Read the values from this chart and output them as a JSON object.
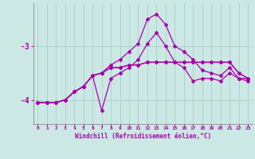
{
  "xlabel": "Windchill (Refroidissement éolien,°C)",
  "background_color": "#cce8e4",
  "grid_color": "#aacfcb",
  "line_color": "#aa00aa",
  "x_ticks": [
    0,
    1,
    2,
    3,
    4,
    5,
    6,
    7,
    8,
    9,
    10,
    11,
    12,
    13,
    14,
    15,
    16,
    17,
    18,
    19,
    20,
    21,
    22,
    23
  ],
  "y_ticks": [
    -4,
    -3
  ],
  "xlim": [
    -0.5,
    23.5
  ],
  "ylim": [
    -4.45,
    -2.2
  ],
  "series": {
    "line1_y": [
      -4.05,
      -4.05,
      -4.05,
      -4.0,
      -3.85,
      -3.75,
      -3.55,
      -3.5,
      -3.35,
      -3.25,
      -3.1,
      -2.95,
      -2.5,
      -2.4,
      -2.6,
      -3.0,
      -3.1,
      -3.25,
      -3.45,
      -3.5,
      -3.55,
      -3.4,
      -3.6,
      -3.6
    ],
    "line2_y": [
      -4.05,
      -4.05,
      -4.05,
      -4.0,
      -3.85,
      -3.75,
      -3.55,
      -4.2,
      -3.6,
      -3.5,
      -3.4,
      -3.25,
      -2.95,
      -2.75,
      -3.0,
      -3.3,
      -3.4,
      -3.65,
      -3.6,
      -3.6,
      -3.65,
      -3.5,
      -3.6,
      -3.65
    ],
    "line3_y": [
      -4.05,
      -4.05,
      -4.05,
      -4.0,
      -3.85,
      -3.75,
      -3.55,
      -3.5,
      -3.4,
      -3.4,
      -3.35,
      -3.35,
      -3.3,
      -3.3,
      -3.3,
      -3.3,
      -3.3,
      -3.3,
      -3.3,
      -3.3,
      -3.3,
      -3.3,
      -3.5,
      -3.6
    ],
    "line4_y": [
      -4.05,
      -4.05,
      -4.05,
      -4.0,
      -3.85,
      -3.75,
      -3.55,
      -3.5,
      -3.4,
      -3.4,
      -3.35,
      -3.35,
      -3.3,
      -3.3,
      -3.3,
      -3.3,
      -3.3,
      -3.3,
      -3.3,
      -3.3,
      -3.3,
      -3.3,
      -3.5,
      -3.6
    ]
  }
}
